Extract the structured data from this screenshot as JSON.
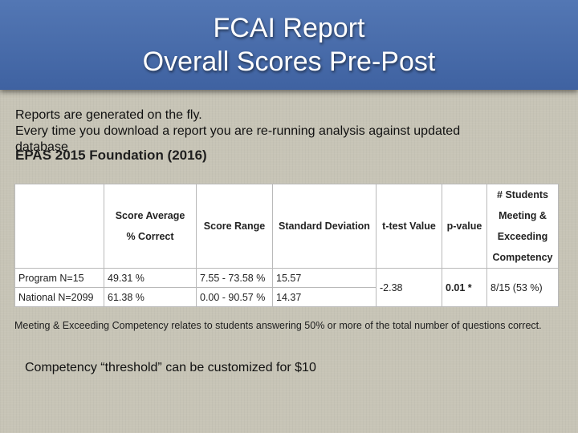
{
  "slide": {
    "title_line1": "FCAI Report",
    "title_line2": "Overall Scores Pre-Post",
    "notes_line1": "Reports are generated on the fly.",
    "notes_line2": "Every time you download a report you are re-running analysis against updated",
    "notes_line3": "database",
    "report_heading": "EPAS 2015 Foundation (2016)",
    "table": {
      "headers": {
        "label": "",
        "score_average_line1": "Score Average",
        "score_average_line2": "% Correct",
        "score_range": "Score Range",
        "std_dev": "Standard Deviation",
        "t_test": "t-test Value",
        "p_value": "p-value",
        "students_line1": "# Students",
        "students_line2": "Meeting &",
        "students_line3": "Exceeding",
        "students_line4": "Competency"
      },
      "rows": [
        {
          "group": "Program N=15",
          "average": "49.31 %",
          "range": "7.55 - 73.58 %",
          "std_dev": "15.57"
        },
        {
          "group": "National N=2099",
          "average": "61.38 %",
          "range": "0.00 - 90.57 %",
          "std_dev": "14.37"
        }
      ],
      "t_test_value": "-2.38",
      "p_value": "0.01 *",
      "students_meeting": "8/15 (53 %)"
    },
    "footnote": "Meeting & Exceeding Competency relates to students answering 50% or more of the total number of questions correct.",
    "competency_note": "Competency “threshold” can be customized for $10"
  },
  "colors": {
    "header_blue": "#4a6dae",
    "background": "#c7c4b6",
    "table_background": "#ffffff"
  }
}
